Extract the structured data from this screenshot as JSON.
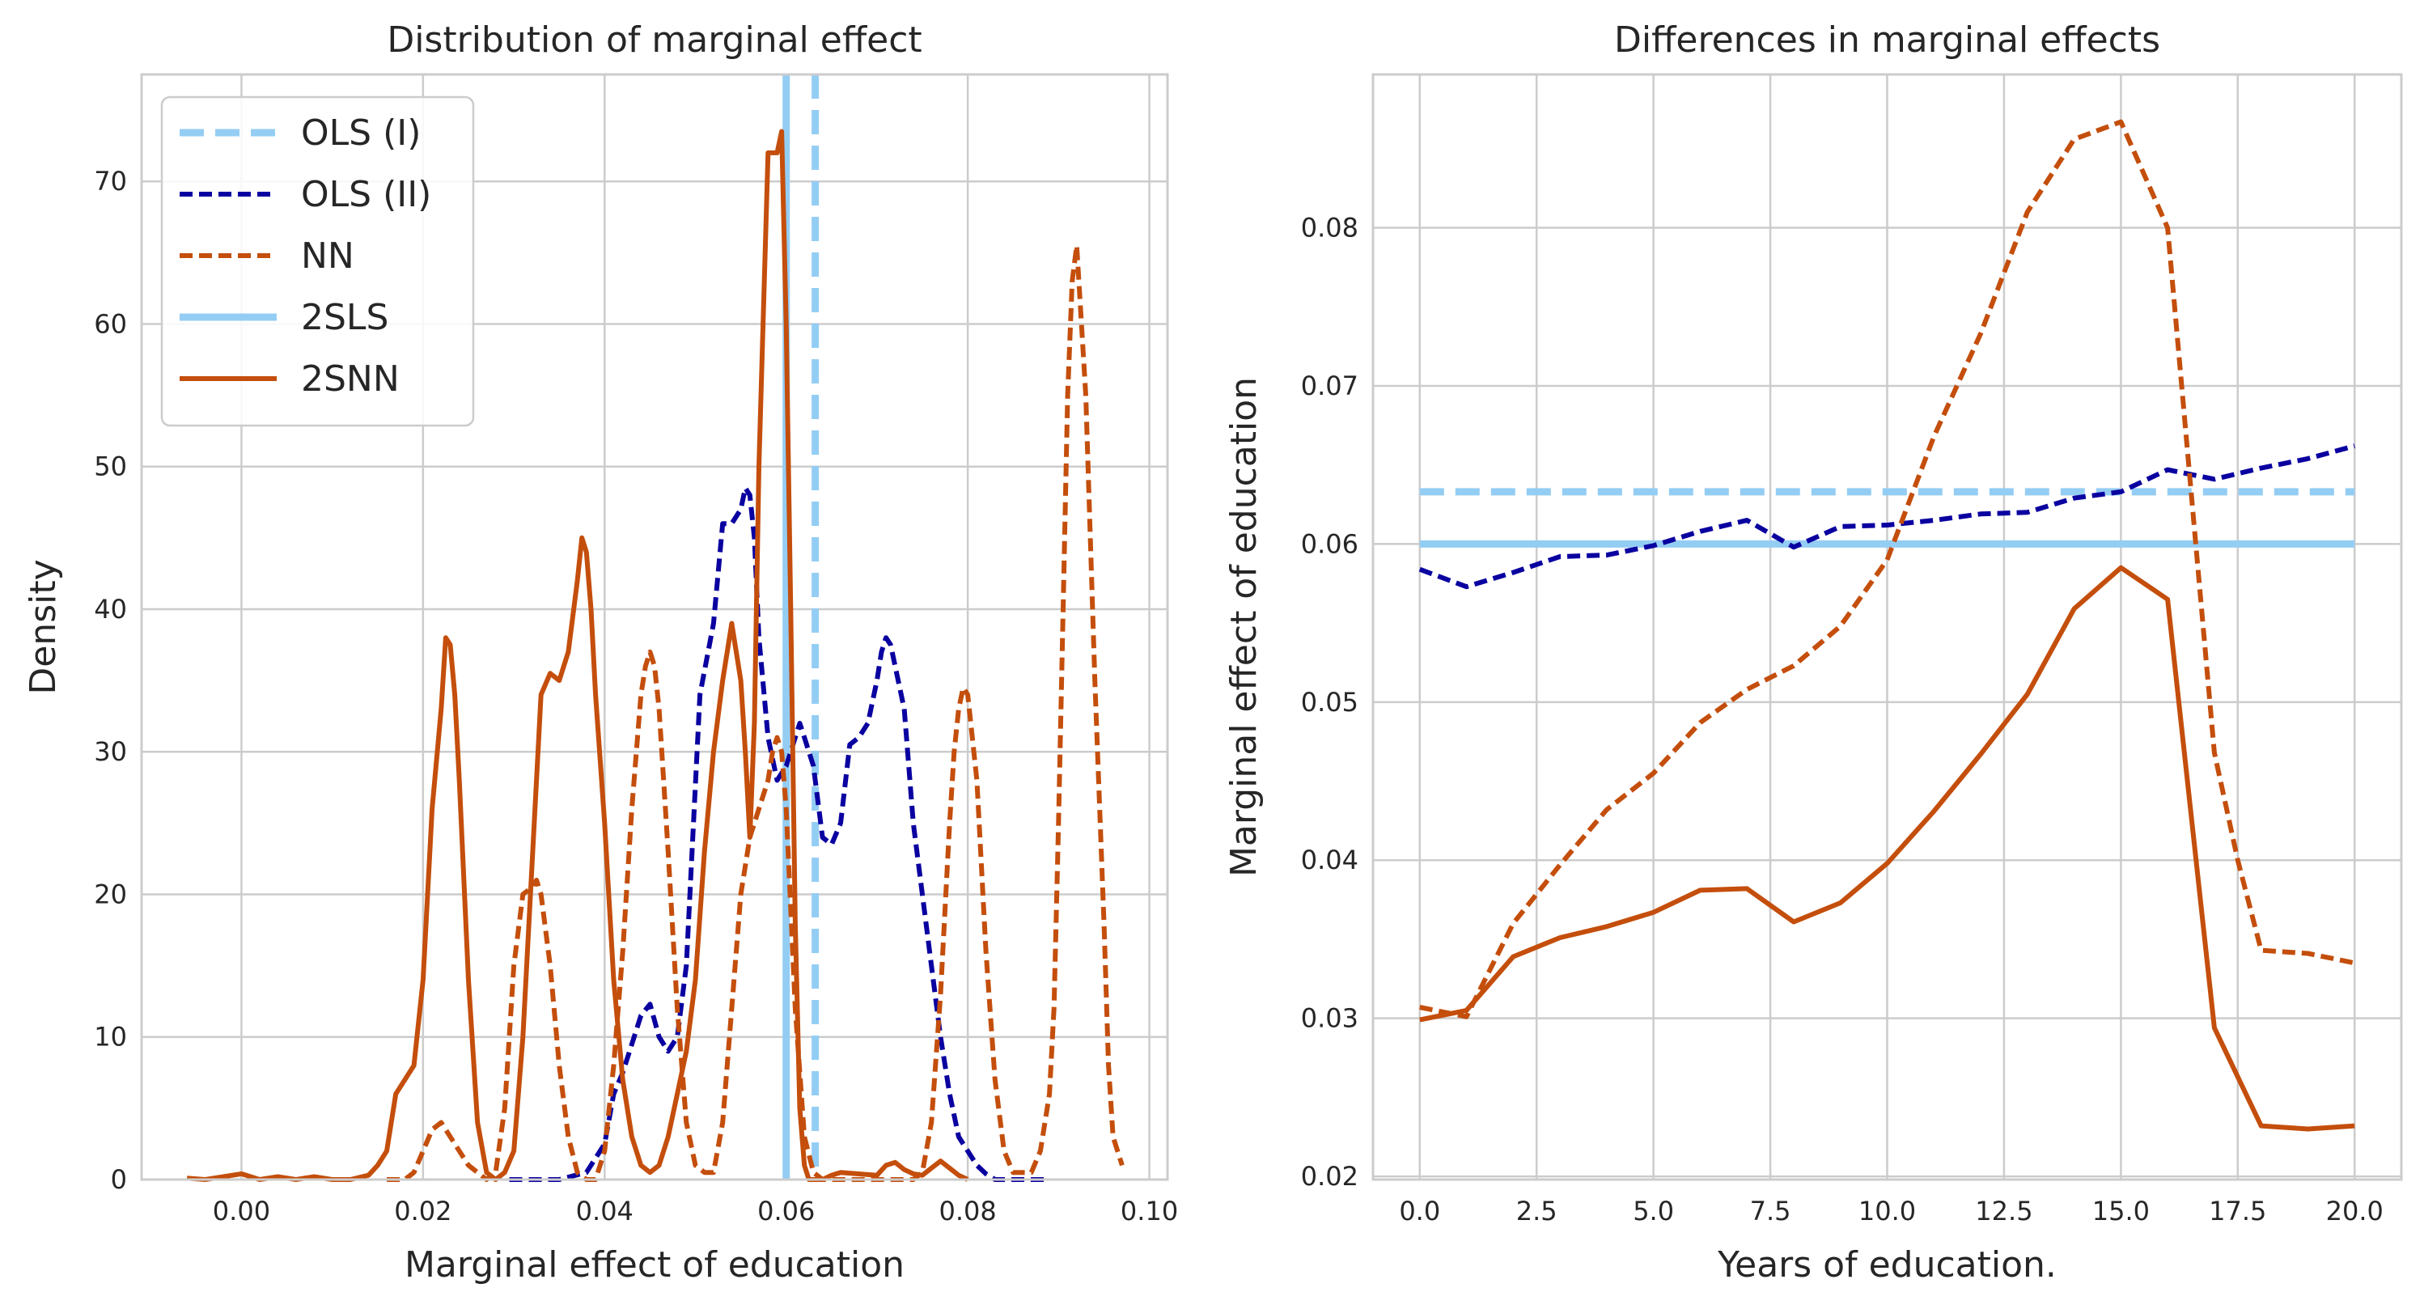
{
  "chart_data": [
    {
      "type": "line",
      "title": "Distribution of marginal effect",
      "xlabel": "Marginal effect of education",
      "ylabel": "Density",
      "xlim": [
        -0.011,
        0.102
      ],
      "ylim": [
        0,
        77.5
      ],
      "xticks": [
        0.0,
        0.02,
        0.04,
        0.06,
        0.08,
        0.1
      ],
      "xtick_labels": [
        "0.00",
        "0.02",
        "0.04",
        "0.06",
        "0.08",
        "0.10"
      ],
      "yticks": [
        0,
        10,
        20,
        30,
        40,
        50,
        60,
        70
      ],
      "ytick_labels": [
        "0",
        "10",
        "20",
        "30",
        "40",
        "50",
        "60",
        "70"
      ],
      "grid": true,
      "legend_position": "top-left",
      "legend": [
        {
          "label": "OLS (I)",
          "color": "#94cdf4",
          "style": "dashed-thick"
        },
        {
          "label": "OLS (II)",
          "color": "#0a00a0",
          "style": "dashed"
        },
        {
          "label": "NN",
          "color": "#c44e0c",
          "style": "dashed"
        },
        {
          "label": "2SLS",
          "color": "#94cdf4",
          "style": "solid-thick"
        },
        {
          "label": "2SNN",
          "color": "#c44e0c",
          "style": "solid"
        }
      ],
      "vlines": [
        {
          "name": "OLS (I)",
          "x": 0.0632,
          "color": "#94cdf4",
          "style": "dashed-thick"
        },
        {
          "name": "2SLS",
          "x": 0.06,
          "color": "#94cdf4",
          "style": "solid-thick"
        }
      ],
      "series": [
        {
          "name": "OLS (II)",
          "color": "#0a00a0",
          "style": "dashed",
          "x": [
            0.0295,
            0.035,
            0.038,
            0.04,
            0.041,
            0.042,
            0.044,
            0.045,
            0.046,
            0.047,
            0.048,
            0.049,
            0.0505,
            0.052,
            0.053,
            0.054,
            0.055,
            0.0555,
            0.056,
            0.0565,
            0.057,
            0.058,
            0.059,
            0.06,
            0.061,
            0.0615,
            0.062,
            0.063,
            0.064,
            0.065,
            0.066,
            0.067,
            0.068,
            0.069,
            0.07,
            0.0705,
            0.071,
            0.0715,
            0.072,
            0.073,
            0.074,
            0.075,
            0.076,
            0.077,
            0.078,
            0.079,
            0.08,
            0.081,
            0.082,
            0.083,
            0.084,
            0.085,
            0.087,
            0.089
          ],
          "y": [
            0,
            0,
            0.5,
            2.5,
            6,
            7.5,
            11.5,
            12.3,
            10,
            9,
            10,
            15,
            34,
            39,
            46,
            46,
            47,
            48.5,
            48,
            45,
            38,
            31,
            28,
            29,
            31,
            32,
            31,
            29,
            24,
            23.5,
            25,
            30.5,
            31,
            32,
            35,
            37,
            38,
            37.5,
            36,
            33,
            25,
            20,
            15,
            10,
            6,
            3,
            2,
            1,
            0.4,
            0,
            0,
            0,
            0,
            0
          ]
        },
        {
          "name": "NN",
          "color": "#c44e0c",
          "style": "dashed",
          "x": [
            0.016,
            0.018,
            0.019,
            0.02,
            0.021,
            0.022,
            0.023,
            0.024,
            0.025,
            0.026,
            0.027,
            0.028,
            0.029,
            0.03,
            0.031,
            0.032,
            0.0325,
            0.033,
            0.034,
            0.035,
            0.036,
            0.037,
            0.038,
            0.039,
            0.04,
            0.041,
            0.042,
            0.043,
            0.044,
            0.0445,
            0.045,
            0.0455,
            0.046,
            0.047,
            0.048,
            0.049,
            0.05,
            0.051,
            0.052,
            0.053,
            0.054,
            0.055,
            0.056,
            0.057,
            0.058,
            0.0585,
            0.059,
            0.0595,
            0.06,
            0.061,
            0.062,
            0.063,
            0.064,
            0.065,
            0.066,
            0.07,
            0.072,
            0.074,
            0.075,
            0.076,
            0.077,
            0.078,
            0.0785,
            0.079,
            0.0795,
            0.08,
            0.081,
            0.082,
            0.083,
            0.084,
            0.085,
            0.086,
            0.087,
            0.088,
            0.089,
            0.0895,
            0.09,
            0.0905,
            0.091,
            0.0915,
            0.092,
            0.093,
            0.094,
            0.095,
            0.0955,
            0.096,
            0.097
          ],
          "y": [
            0,
            0,
            0.5,
            2,
            3.5,
            4,
            3,
            2,
            1,
            0.5,
            0,
            0.5,
            5,
            15,
            20,
            20.5,
            21,
            20,
            15,
            8,
            3,
            0.5,
            0,
            0,
            2,
            8,
            16,
            26,
            34,
            36,
            37,
            36,
            33,
            23,
            12,
            4,
            1,
            0.5,
            0.5,
            4,
            12,
            20,
            24,
            26,
            28,
            30,
            31,
            30,
            26,
            12,
            3,
            0.5,
            0,
            0,
            0,
            0,
            0,
            0,
            0.5,
            4,
            13,
            25,
            30,
            33,
            34.5,
            34,
            28,
            16,
            7,
            2,
            0.5,
            0.5,
            0.5,
            2,
            6,
            12,
            25,
            40,
            55,
            63,
            65.5,
            55,
            35,
            18,
            8,
            3,
            1
          ]
        },
        {
          "name": "2SNN",
          "color": "#c44e0c",
          "style": "solid",
          "x": [
            -0.006,
            -0.004,
            -0.002,
            0.0,
            0.002,
            0.004,
            0.006,
            0.008,
            0.01,
            0.012,
            0.014,
            0.015,
            0.016,
            0.017,
            0.018,
            0.019,
            0.02,
            0.021,
            0.022,
            0.0225,
            0.023,
            0.0235,
            0.024,
            0.025,
            0.026,
            0.027,
            0.028,
            0.029,
            0.03,
            0.031,
            0.032,
            0.033,
            0.034,
            0.035,
            0.036,
            0.037,
            0.0375,
            0.038,
            0.0385,
            0.039,
            0.04,
            0.041,
            0.042,
            0.043,
            0.044,
            0.045,
            0.046,
            0.047,
            0.048,
            0.049,
            0.05,
            0.051,
            0.052,
            0.053,
            0.054,
            0.055,
            0.0555,
            0.056,
            0.0565,
            0.057,
            0.058,
            0.059,
            0.0595,
            0.06,
            0.0605,
            0.061,
            0.0615,
            0.062,
            0.0625,
            0.063,
            0.064,
            0.065,
            0.066,
            0.07,
            0.071,
            0.072,
            0.073,
            0.074,
            0.075,
            0.076,
            0.077,
            0.078,
            0.079,
            0.08
          ],
          "y": [
            0.1,
            0,
            0.2,
            0.4,
            0,
            0.2,
            0,
            0.2,
            0,
            0,
            0.3,
            1,
            2,
            6,
            7,
            8,
            14,
            26,
            33,
            38,
            37.5,
            34,
            28,
            14,
            4,
            0.5,
            0,
            0.5,
            2,
            10,
            22,
            34,
            35.5,
            35,
            37,
            42,
            45,
            44,
            40,
            34,
            25,
            14,
            7,
            3,
            1,
            0.5,
            1,
            3,
            6,
            9,
            14,
            23,
            30,
            35,
            39,
            35,
            30,
            24,
            32,
            50,
            72,
            72,
            73.5,
            60,
            40,
            18,
            5,
            1,
            0,
            0,
            0,
            0.3,
            0.5,
            0.3,
            1,
            1.2,
            0.7,
            0.4,
            0.3,
            0.8,
            1.3,
            0.8,
            0.3,
            0
          ]
        }
      ]
    },
    {
      "type": "line",
      "title": "Differences in marginal effects",
      "xlabel": "Years of education.",
      "ylabel": "Marginal effect of education",
      "xlim": [
        -1.0,
        21.0
      ],
      "ylim": [
        0.0198,
        0.0897
      ],
      "xticks": [
        0.0,
        2.5,
        5.0,
        7.5,
        10.0,
        12.5,
        15.0,
        17.5,
        20.0
      ],
      "xtick_labels": [
        "0.0",
        "2.5",
        "5.0",
        "7.5",
        "10.0",
        "12.5",
        "15.0",
        "17.5",
        "20.0"
      ],
      "yticks": [
        0.02,
        0.03,
        0.04,
        0.05,
        0.06,
        0.07,
        0.08
      ],
      "ytick_labels": [
        "0.02",
        "0.03",
        "0.04",
        "0.05",
        "0.06",
        "0.07",
        "0.08"
      ],
      "grid": true,
      "series": [
        {
          "name": "OLS (I)",
          "color": "#94cdf4",
          "style": "dashed-thick",
          "x": [
            0,
            20
          ],
          "y": [
            0.0633,
            0.0633
          ]
        },
        {
          "name": "2SLS",
          "color": "#94cdf4",
          "style": "solid-thick",
          "x": [
            0,
            20
          ],
          "y": [
            0.06,
            0.06
          ]
        },
        {
          "name": "OLS (II)",
          "color": "#0a00a0",
          "style": "dashed",
          "x": [
            0,
            1,
            2,
            3,
            4,
            5,
            6,
            7,
            8,
            9,
            10,
            11,
            12,
            13,
            14,
            15,
            16,
            17,
            18,
            19,
            20
          ],
          "y": [
            0.0584,
            0.0573,
            0.0582,
            0.0592,
            0.0593,
            0.0599,
            0.0608,
            0.0615,
            0.0598,
            0.0611,
            0.0612,
            0.0615,
            0.0619,
            0.062,
            0.0629,
            0.0633,
            0.0647,
            0.0641,
            0.0648,
            0.0654,
            0.0662
          ]
        },
        {
          "name": "NN",
          "color": "#c44e0c",
          "style": "dashed",
          "x": [
            0,
            1,
            2,
            3,
            4,
            5,
            6,
            7,
            8,
            9,
            10,
            11,
            12,
            13,
            14,
            15,
            16,
            17,
            17.5,
            18,
            19,
            20
          ],
          "y": [
            0.0307,
            0.0301,
            0.036,
            0.0397,
            0.0432,
            0.0455,
            0.0487,
            0.0508,
            0.0523,
            0.0548,
            0.059,
            0.0668,
            0.0733,
            0.081,
            0.0856,
            0.0867,
            0.08,
            0.0468,
            0.04,
            0.0343,
            0.0341,
            0.0335
          ]
        },
        {
          "name": "2SNN",
          "color": "#c44e0c",
          "style": "solid",
          "x": [
            0,
            1,
            2,
            3,
            4,
            5,
            6,
            7,
            8,
            9,
            10,
            11,
            12,
            13,
            14,
            15,
            16,
            17,
            18,
            19,
            20
          ],
          "y": [
            0.0299,
            0.0305,
            0.0339,
            0.0351,
            0.0358,
            0.0367,
            0.0381,
            0.0382,
            0.0361,
            0.0373,
            0.0398,
            0.0431,
            0.0467,
            0.0505,
            0.0559,
            0.0585,
            0.0565,
            0.0294,
            0.0232,
            0.023,
            0.0232
          ]
        }
      ]
    }
  ]
}
